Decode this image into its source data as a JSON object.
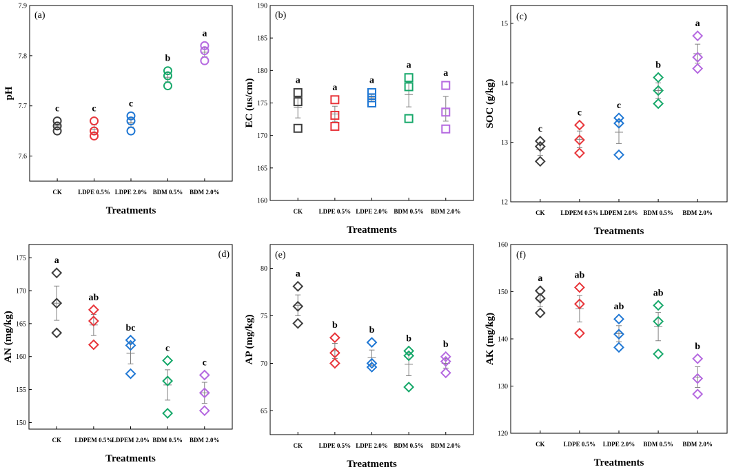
{
  "figure": {
    "name": "soil-properties-figure"
  },
  "colors": {
    "CK": "#3d3d3d",
    "LDPE05": "#e8353a",
    "LDPE20": "#1f77d4",
    "BDM05": "#16a86a",
    "BDM20": "#b569e0",
    "errorbar": "#808080"
  },
  "chart_data": [
    {
      "panel_label": "(a)",
      "type": "scatter",
      "marker": "circle",
      "title": "",
      "xlabel": "Treatments",
      "ylabel": "pH",
      "ylim": [
        7.55,
        7.9
      ],
      "yticks": [
        "7.6",
        "7.7",
        "7.8",
        "7.9"
      ],
      "ytick_values": [
        7.6,
        7.7,
        7.8,
        7.9
      ],
      "categories": [
        "CK",
        "LDPE 0.5%",
        "LDPE 2.0%",
        "BDM 0.5%",
        "BDM 2.0%"
      ],
      "color_keys": [
        "CK",
        "LDPE05",
        "LDPE20",
        "BDM05",
        "BDM20"
      ],
      "points": [
        [
          7.67,
          7.66,
          7.65
        ],
        [
          7.67,
          7.65,
          7.64
        ],
        [
          7.68,
          7.67,
          7.65
        ],
        [
          7.77,
          7.76,
          7.74
        ],
        [
          7.82,
          7.81,
          7.79
        ]
      ],
      "means": [
        7.66,
        7.653,
        7.667,
        7.757,
        7.807
      ],
      "se": [
        0.006,
        0.009,
        0.009,
        0.009,
        0.009
      ],
      "letters": [
        "c",
        "c",
        "c",
        "b",
        "a"
      ]
    },
    {
      "panel_label": "(b)",
      "type": "scatter",
      "marker": "square",
      "title": "",
      "xlabel": "Treatments",
      "ylabel": "EC (us/cm)",
      "ylim": [
        160,
        190
      ],
      "yticks": [
        "160",
        "165",
        "170",
        "175",
        "180",
        "185",
        "190"
      ],
      "ytick_values": [
        160,
        165,
        170,
        175,
        180,
        185,
        190
      ],
      "categories": [
        "CK",
        "LDPE 0.5%",
        "LDPE 2.0%",
        "BDM 0.5%",
        "BDM 2.0%"
      ],
      "color_keys": [
        "CK",
        "LDPE05",
        "LDPE20",
        "BDM05",
        "BDM20"
      ],
      "points": [
        [
          176.6,
          175.2,
          171.1
        ],
        [
          175.5,
          173.1,
          171.4
        ],
        [
          176.6,
          175.8,
          175.0
        ],
        [
          178.9,
          177.5,
          172.6
        ],
        [
          177.7,
          173.6,
          171.0
        ]
      ],
      "means": [
        174.3,
        173.3,
        175.8,
        176.3,
        174.1
      ],
      "se": [
        1.6,
        1.2,
        0.5,
        1.9,
        1.9
      ],
      "letters": [
        "a",
        "a",
        "a",
        "a",
        "a"
      ]
    },
    {
      "panel_label": "(c)",
      "type": "scatter",
      "marker": "diamond",
      "title": "",
      "xlabel": "Treatments",
      "ylabel": "SOC (g/kg)",
      "ylim": [
        12,
        15.3
      ],
      "yticks": [
        "12",
        "13",
        "14",
        "15"
      ],
      "ytick_values": [
        12,
        13,
        14,
        15
      ],
      "categories": [
        "CK",
        "LDPEM 0.5%",
        "LDPEM 2.0%",
        "BDM 0.5%",
        "BDM 2.0%"
      ],
      "color_keys": [
        "CK",
        "LDPE05",
        "LDPE20",
        "BDM05",
        "BDM20"
      ],
      "points": [
        [
          13.02,
          12.93,
          12.68
        ],
        [
          13.29,
          13.04,
          12.82
        ],
        [
          13.41,
          13.32,
          12.79
        ],
        [
          14.09,
          13.87,
          13.65
        ],
        [
          14.79,
          14.43,
          14.24
        ]
      ],
      "means": [
        12.88,
        13.05,
        13.17,
        13.87,
        14.49
      ],
      "se": [
        0.1,
        0.14,
        0.19,
        0.13,
        0.16
      ],
      "letters": [
        "c",
        "c",
        "c",
        "b",
        "a"
      ]
    },
    {
      "panel_label": "(d)",
      "type": "scatter",
      "marker": "diamond",
      "title": "",
      "xlabel": "Treatments",
      "ylabel": "AN (mg/kg)",
      "ylim": [
        149,
        177
      ],
      "yticks": [
        "150",
        "155",
        "160",
        "165",
        "170",
        "175"
      ],
      "ytick_values": [
        150,
        155,
        160,
        165,
        170,
        175
      ],
      "categories": [
        "CK",
        "LDPEM 0.5%",
        "LDPEM 2.0%",
        "BDM 0.5%",
        "BDM 2.0%"
      ],
      "color_keys": [
        "CK",
        "LDPE05",
        "LDPE20",
        "BDM05",
        "BDM20"
      ],
      "points": [
        [
          172.7,
          168.1,
          163.6
        ],
        [
          167.1,
          165.4,
          161.8
        ],
        [
          162.5,
          161.7,
          157.4
        ],
        [
          159.4,
          156.3,
          151.4
        ],
        [
          157.2,
          154.5,
          151.8
        ]
      ],
      "means": [
        168.1,
        164.8,
        160.5,
        155.7,
        154.5
      ],
      "se": [
        2.6,
        1.6,
        1.6,
        2.3,
        1.6
      ],
      "letters": [
        "a",
        "ab",
        "bc",
        "c",
        "c"
      ]
    },
    {
      "panel_label": "(e)",
      "type": "scatter",
      "marker": "diamond",
      "title": "",
      "xlabel": "Treatments",
      "ylabel": "AP (mg/kg)",
      "ylim": [
        62.5,
        82.5
      ],
      "yticks": [
        "65",
        "70",
        "75",
        "80"
      ],
      "ytick_values": [
        65,
        70,
        75,
        80
      ],
      "categories": [
        "CK",
        "LDPE 0.5%",
        "LDPE 2.0%",
        "BDM 0.5%",
        "BDM 2.0%"
      ],
      "color_keys": [
        "CK",
        "LDPE05",
        "LDPE20",
        "BDM05",
        "BDM20"
      ],
      "points": [
        [
          78.1,
          76.0,
          74.2
        ],
        [
          72.7,
          71.1,
          70.0
        ],
        [
          72.2,
          70.0,
          69.6
        ],
        [
          71.3,
          70.8,
          67.5
        ],
        [
          70.7,
          70.2,
          69.0
        ]
      ],
      "means": [
        76.1,
        71.3,
        70.6,
        69.9,
        70.0
      ],
      "se": [
        1.1,
        0.8,
        0.8,
        1.2,
        0.5
      ],
      "letters": [
        "a",
        "b",
        "b",
        "b",
        "b"
      ]
    },
    {
      "panel_label": "(f)",
      "type": "scatter",
      "marker": "diamond",
      "title": "",
      "xlabel": "Treatments",
      "ylabel": "AK (mg/kg)",
      "ylim": [
        120,
        160
      ],
      "yticks": [
        "120",
        "130",
        "140",
        "150",
        "160"
      ],
      "ytick_values": [
        120,
        130,
        140,
        150,
        160
      ],
      "categories": [
        "CK",
        "LDPE 0.5%",
        "LDPE 2.0%",
        "BDM 0.5%",
        "BDM 2.0%"
      ],
      "color_keys": [
        "CK",
        "LDPE05",
        "LDPE20",
        "BDM05",
        "BDM20"
      ],
      "points": [
        [
          150.2,
          148.6,
          145.5
        ],
        [
          150.9,
          147.4,
          141.2
        ],
        [
          144.2,
          141.0,
          138.2
        ],
        [
          147.1,
          143.7,
          136.8
        ],
        [
          135.8,
          131.6,
          128.3
        ]
      ],
      "means": [
        148.2,
        146.4,
        141.1,
        142.6,
        131.9
      ],
      "se": [
        1.4,
        2.8,
        1.7,
        3.0,
        2.2
      ],
      "letters": [
        "a",
        "ab",
        "ab",
        "ab",
        "b"
      ]
    }
  ]
}
